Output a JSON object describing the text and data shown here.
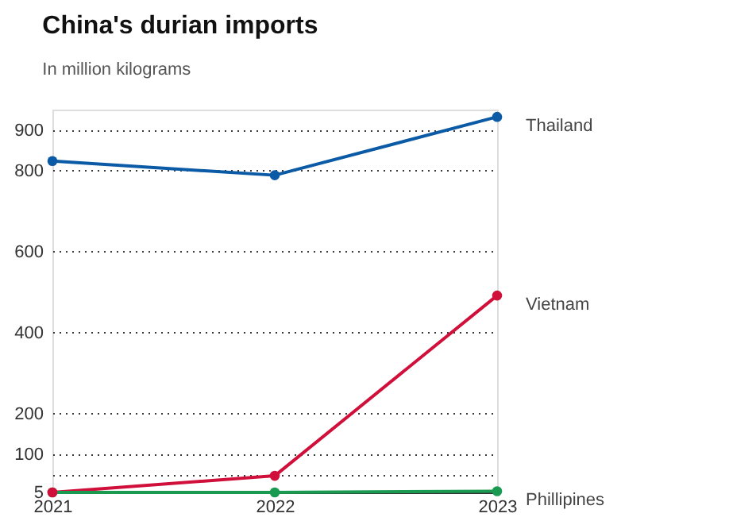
{
  "chart_data": {
    "type": "line",
    "title": "China's durian imports",
    "subtitle": "In million kilograms",
    "categories": [
      "2021",
      "2022",
      "2023"
    ],
    "series": [
      {
        "name": "Thailand",
        "color": "#0b5aa5",
        "values": [
          823,
          788,
          932
        ]
      },
      {
        "name": "Vietnam",
        "color": "#d0103a",
        "values": [
          5,
          46,
          491
        ]
      },
      {
        "name": "Phillipines",
        "color": "#1a9a50",
        "values": [
          5,
          5,
          8
        ]
      }
    ],
    "ylim": [
      5,
      950
    ],
    "yticks": [
      5,
      {
        "value": 50,
        "label": null
      },
      100,
      200,
      400,
      600,
      800,
      900
    ],
    "grid": "y",
    "marker": "circle",
    "line_style": "solid",
    "legend": false
  }
}
